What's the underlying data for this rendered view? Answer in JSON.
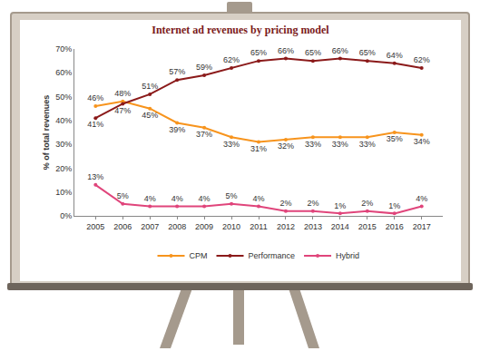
{
  "chart_data": {
    "type": "line",
    "title": "Internet ad revenues by pricing model",
    "ylabel": "% of total revenues",
    "categories": [
      "2005",
      "2006",
      "2007",
      "2008",
      "2009",
      "2010",
      "2011",
      "2012",
      "2013",
      "2014",
      "2015",
      "2016",
      "2017"
    ],
    "series": [
      {
        "name": "CPM",
        "color": "#F7941D",
        "values": [
          46,
          48,
          45,
          39,
          37,
          33,
          31,
          32,
          33,
          33,
          33,
          35,
          34
        ],
        "value_labels": [
          "46%",
          "48%",
          "45%",
          "39%",
          "37%",
          "33%",
          "31%",
          "32%",
          "33%",
          "33%",
          "33%",
          "35%",
          "34%"
        ]
      },
      {
        "name": "Performance",
        "color": "#8B1A1A",
        "values": [
          41,
          47,
          51,
          57,
          59,
          62,
          65,
          66,
          65,
          66,
          65,
          64,
          62
        ],
        "value_labels": [
          "41%",
          "47%",
          "51%",
          "57%",
          "59%",
          "62%",
          "65%",
          "66%",
          "65%",
          "66%",
          "65%",
          "64%",
          "62%"
        ]
      },
      {
        "name": "Hybrid",
        "color": "#E0457B",
        "values": [
          13,
          5,
          4,
          4,
          4,
          5,
          4,
          2,
          2,
          1,
          2,
          1,
          4
        ],
        "value_labels": [
          "13%",
          "5%",
          "4%",
          "4%",
          "4%",
          "5%",
          "4%",
          "2%",
          "2%",
          "1%",
          "2%",
          "1%",
          "4%"
        ]
      }
    ],
    "ylim": [
      0,
      70
    ],
    "yticks": [
      {
        "value": 0,
        "label": "0%"
      },
      {
        "value": 10,
        "label": "10%"
      },
      {
        "value": 20,
        "label": "20%"
      },
      {
        "value": 30,
        "label": "30%"
      },
      {
        "value": 40,
        "label": "40%"
      },
      {
        "value": 50,
        "label": "50%"
      },
      {
        "value": 60,
        "label": "60%"
      },
      {
        "value": 70,
        "label": "70%"
      }
    ],
    "grid": false,
    "legend": "bottom",
    "data_labels": true,
    "marker": "circle"
  }
}
